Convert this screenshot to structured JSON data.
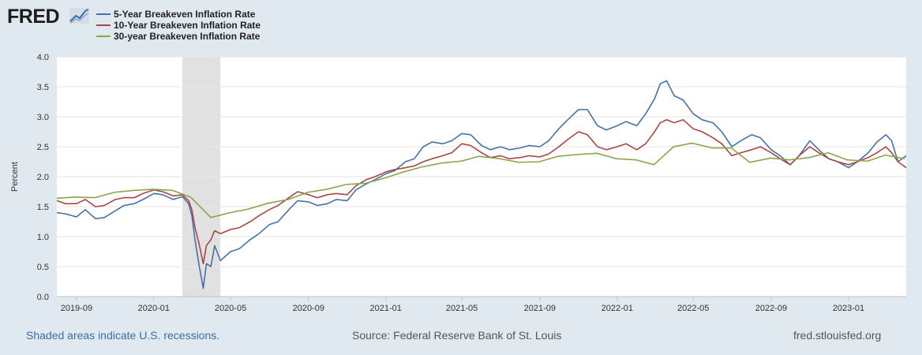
{
  "logo": {
    "text": "FRED"
  },
  "footer": {
    "recession_note": "Shaded areas indicate U.S. recessions.",
    "source": "Source: Federal Reserve Bank of St. Louis",
    "site": "fred.stlouisfed.org"
  },
  "chart_data": {
    "type": "line",
    "ylabel": "Percent",
    "ylim": [
      0.0,
      4.0
    ],
    "xlim": [
      "2019-08-01",
      "2023-04-02"
    ],
    "yticks": [
      "0.0",
      "0.5",
      "1.0",
      "1.5",
      "2.0",
      "2.5",
      "3.0",
      "3.5",
      "4.0"
    ],
    "xticks": [
      "2019-09",
      "2020-01",
      "2020-05",
      "2020-09",
      "2021-01",
      "2021-05",
      "2021-09",
      "2022-01",
      "2022-05",
      "2022-09",
      "2023-01"
    ],
    "grid": true,
    "legend": "top-left",
    "recessions": [
      {
        "start": "2020-02-15",
        "end": "2020-04-15"
      }
    ],
    "colors": {
      "five_year": "#4572a7",
      "ten_year": "#aa4643",
      "thirty_year": "#89a54e",
      "recession": "#e1e1e1"
    },
    "series": [
      {
        "name": "5-Year Breakeven Inflation Rate",
        "color": "#4572a7",
        "points": [
          [
            "2019-08-01",
            1.4
          ],
          [
            "2019-08-15",
            1.38
          ],
          [
            "2019-09-01",
            1.33
          ],
          [
            "2019-09-15",
            1.45
          ],
          [
            "2019-10-01",
            1.3
          ],
          [
            "2019-10-15",
            1.32
          ],
          [
            "2019-11-01",
            1.43
          ],
          [
            "2019-11-15",
            1.52
          ],
          [
            "2019-12-01",
            1.55
          ],
          [
            "2019-12-15",
            1.62
          ],
          [
            "2020-01-01",
            1.72
          ],
          [
            "2020-01-15",
            1.7
          ],
          [
            "2020-02-01",
            1.62
          ],
          [
            "2020-02-15",
            1.67
          ],
          [
            "2020-02-25",
            1.55
          ],
          [
            "2020-03-01",
            1.35
          ],
          [
            "2020-03-06",
            0.95
          ],
          [
            "2020-03-12",
            0.55
          ],
          [
            "2020-03-19",
            0.14
          ],
          [
            "2020-03-24",
            0.55
          ],
          [
            "2020-03-31",
            0.5
          ],
          [
            "2020-04-06",
            0.85
          ],
          [
            "2020-04-15",
            0.6
          ],
          [
            "2020-05-01",
            0.75
          ],
          [
            "2020-05-15",
            0.8
          ],
          [
            "2020-06-01",
            0.95
          ],
          [
            "2020-06-15",
            1.05
          ],
          [
            "2020-07-01",
            1.2
          ],
          [
            "2020-07-15",
            1.25
          ],
          [
            "2020-08-01",
            1.45
          ],
          [
            "2020-08-15",
            1.6
          ],
          [
            "2020-09-01",
            1.58
          ],
          [
            "2020-09-15",
            1.52
          ],
          [
            "2020-10-01",
            1.55
          ],
          [
            "2020-10-15",
            1.62
          ],
          [
            "2020-11-01",
            1.6
          ],
          [
            "2020-11-15",
            1.78
          ],
          [
            "2020-12-01",
            1.88
          ],
          [
            "2020-12-15",
            1.95
          ],
          [
            "2021-01-01",
            2.05
          ],
          [
            "2021-01-15",
            2.1
          ],
          [
            "2021-02-01",
            2.25
          ],
          [
            "2021-02-15",
            2.3
          ],
          [
            "2021-03-01",
            2.5
          ],
          [
            "2021-03-15",
            2.58
          ],
          [
            "2021-04-01",
            2.55
          ],
          [
            "2021-04-15",
            2.6
          ],
          [
            "2021-05-01",
            2.72
          ],
          [
            "2021-05-15",
            2.7
          ],
          [
            "2021-06-01",
            2.52
          ],
          [
            "2021-06-15",
            2.45
          ],
          [
            "2021-07-01",
            2.5
          ],
          [
            "2021-07-15",
            2.45
          ],
          [
            "2021-08-01",
            2.48
          ],
          [
            "2021-08-15",
            2.52
          ],
          [
            "2021-09-01",
            2.5
          ],
          [
            "2021-09-15",
            2.6
          ],
          [
            "2021-10-01",
            2.8
          ],
          [
            "2021-10-15",
            2.95
          ],
          [
            "2021-11-01",
            3.12
          ],
          [
            "2021-11-15",
            3.12
          ],
          [
            "2021-12-01",
            2.85
          ],
          [
            "2021-12-15",
            2.78
          ],
          [
            "2022-01-01",
            2.85
          ],
          [
            "2022-01-15",
            2.92
          ],
          [
            "2022-02-01",
            2.85
          ],
          [
            "2022-02-15",
            3.05
          ],
          [
            "2022-03-01",
            3.3
          ],
          [
            "2022-03-10",
            3.55
          ],
          [
            "2022-03-20",
            3.6
          ],
          [
            "2022-04-01",
            3.35
          ],
          [
            "2022-04-15",
            3.28
          ],
          [
            "2022-05-01",
            3.05
          ],
          [
            "2022-05-15",
            2.95
          ],
          [
            "2022-06-01",
            2.9
          ],
          [
            "2022-06-15",
            2.75
          ],
          [
            "2022-07-01",
            2.5
          ],
          [
            "2022-07-15",
            2.6
          ],
          [
            "2022-08-01",
            2.7
          ],
          [
            "2022-08-15",
            2.65
          ],
          [
            "2022-09-01",
            2.45
          ],
          [
            "2022-09-15",
            2.35
          ],
          [
            "2022-10-01",
            2.2
          ],
          [
            "2022-10-15",
            2.35
          ],
          [
            "2022-11-01",
            2.6
          ],
          [
            "2022-11-15",
            2.45
          ],
          [
            "2022-12-01",
            2.3
          ],
          [
            "2022-12-15",
            2.25
          ],
          [
            "2023-01-01",
            2.15
          ],
          [
            "2023-01-15",
            2.25
          ],
          [
            "2023-02-01",
            2.4
          ],
          [
            "2023-02-15",
            2.58
          ],
          [
            "2023-03-01",
            2.7
          ],
          [
            "2023-03-10",
            2.6
          ],
          [
            "2023-03-20",
            2.25
          ],
          [
            "2023-04-02",
            2.35
          ]
        ]
      },
      {
        "name": "10-Year Breakeven Inflation Rate",
        "color": "#aa4643",
        "points": [
          [
            "2019-08-01",
            1.6
          ],
          [
            "2019-08-15",
            1.55
          ],
          [
            "2019-09-01",
            1.55
          ],
          [
            "2019-09-15",
            1.62
          ],
          [
            "2019-10-01",
            1.5
          ],
          [
            "2019-10-15",
            1.52
          ],
          [
            "2019-11-01",
            1.62
          ],
          [
            "2019-11-15",
            1.65
          ],
          [
            "2019-12-01",
            1.65
          ],
          [
            "2019-12-15",
            1.72
          ],
          [
            "2020-01-01",
            1.78
          ],
          [
            "2020-01-15",
            1.75
          ],
          [
            "2020-02-01",
            1.68
          ],
          [
            "2020-02-15",
            1.7
          ],
          [
            "2020-02-25",
            1.6
          ],
          [
            "2020-03-01",
            1.45
          ],
          [
            "2020-03-06",
            1.15
          ],
          [
            "2020-03-12",
            0.9
          ],
          [
            "2020-03-19",
            0.55
          ],
          [
            "2020-03-24",
            0.85
          ],
          [
            "2020-03-31",
            0.95
          ],
          [
            "2020-04-06",
            1.1
          ],
          [
            "2020-04-15",
            1.05
          ],
          [
            "2020-05-01",
            1.12
          ],
          [
            "2020-05-15",
            1.15
          ],
          [
            "2020-06-01",
            1.25
          ],
          [
            "2020-06-15",
            1.35
          ],
          [
            "2020-07-01",
            1.45
          ],
          [
            "2020-07-15",
            1.52
          ],
          [
            "2020-08-01",
            1.65
          ],
          [
            "2020-08-15",
            1.75
          ],
          [
            "2020-09-01",
            1.7
          ],
          [
            "2020-09-15",
            1.65
          ],
          [
            "2020-10-01",
            1.7
          ],
          [
            "2020-10-15",
            1.72
          ],
          [
            "2020-11-01",
            1.7
          ],
          [
            "2020-11-15",
            1.85
          ],
          [
            "2020-12-01",
            1.95
          ],
          [
            "2020-12-15",
            2.0
          ],
          [
            "2021-01-01",
            2.08
          ],
          [
            "2021-01-15",
            2.12
          ],
          [
            "2021-02-01",
            2.15
          ],
          [
            "2021-02-15",
            2.18
          ],
          [
            "2021-03-01",
            2.25
          ],
          [
            "2021-03-15",
            2.3
          ],
          [
            "2021-04-01",
            2.35
          ],
          [
            "2021-04-15",
            2.4
          ],
          [
            "2021-05-01",
            2.55
          ],
          [
            "2021-05-15",
            2.52
          ],
          [
            "2021-06-01",
            2.4
          ],
          [
            "2021-06-15",
            2.32
          ],
          [
            "2021-07-01",
            2.35
          ],
          [
            "2021-07-15",
            2.3
          ],
          [
            "2021-08-01",
            2.32
          ],
          [
            "2021-08-15",
            2.35
          ],
          [
            "2021-09-01",
            2.33
          ],
          [
            "2021-09-15",
            2.38
          ],
          [
            "2021-10-01",
            2.5
          ],
          [
            "2021-10-15",
            2.62
          ],
          [
            "2021-11-01",
            2.75
          ],
          [
            "2021-11-15",
            2.7
          ],
          [
            "2021-12-01",
            2.5
          ],
          [
            "2021-12-15",
            2.45
          ],
          [
            "2022-01-01",
            2.5
          ],
          [
            "2022-01-15",
            2.55
          ],
          [
            "2022-02-01",
            2.45
          ],
          [
            "2022-02-15",
            2.55
          ],
          [
            "2022-03-01",
            2.75
          ],
          [
            "2022-03-10",
            2.9
          ],
          [
            "2022-03-20",
            2.95
          ],
          [
            "2022-04-01",
            2.9
          ],
          [
            "2022-04-15",
            2.95
          ],
          [
            "2022-05-01",
            2.8
          ],
          [
            "2022-05-15",
            2.75
          ],
          [
            "2022-06-01",
            2.65
          ],
          [
            "2022-06-15",
            2.55
          ],
          [
            "2022-07-01",
            2.35
          ],
          [
            "2022-07-15",
            2.4
          ],
          [
            "2022-08-01",
            2.45
          ],
          [
            "2022-08-15",
            2.5
          ],
          [
            "2022-09-01",
            2.4
          ],
          [
            "2022-09-15",
            2.3
          ],
          [
            "2022-10-01",
            2.2
          ],
          [
            "2022-10-15",
            2.35
          ],
          [
            "2022-11-01",
            2.5
          ],
          [
            "2022-11-15",
            2.4
          ],
          [
            "2022-12-01",
            2.3
          ],
          [
            "2022-12-15",
            2.25
          ],
          [
            "2023-01-01",
            2.2
          ],
          [
            "2023-01-15",
            2.25
          ],
          [
            "2023-02-01",
            2.32
          ],
          [
            "2023-02-15",
            2.4
          ],
          [
            "2023-03-01",
            2.5
          ],
          [
            "2023-03-10",
            2.4
          ],
          [
            "2023-03-20",
            2.25
          ],
          [
            "2023-04-02",
            2.15
          ]
        ]
      },
      {
        "name": "30-year Breakeven Inflation Rate",
        "color": "#89a54e",
        "points": [
          [
            "2019-08-01",
            1.64
          ],
          [
            "2019-08-31",
            1.66
          ],
          [
            "2019-09-30",
            1.65
          ],
          [
            "2019-10-31",
            1.74
          ],
          [
            "2019-11-29",
            1.77
          ],
          [
            "2019-12-31",
            1.79
          ],
          [
            "2020-01-31",
            1.77
          ],
          [
            "2020-02-28",
            1.66
          ],
          [
            "2020-03-31",
            1.32
          ],
          [
            "2020-04-30",
            1.4
          ],
          [
            "2020-05-29",
            1.46
          ],
          [
            "2020-06-30",
            1.56
          ],
          [
            "2020-07-31",
            1.62
          ],
          [
            "2020-08-31",
            1.74
          ],
          [
            "2020-09-30",
            1.79
          ],
          [
            "2020-10-30",
            1.87
          ],
          [
            "2020-11-30",
            1.89
          ],
          [
            "2020-12-31",
            1.98
          ],
          [
            "2021-01-29",
            2.08
          ],
          [
            "2021-02-26",
            2.16
          ],
          [
            "2021-03-31",
            2.23
          ],
          [
            "2021-04-30",
            2.26
          ],
          [
            "2021-05-28",
            2.34
          ],
          [
            "2021-06-30",
            2.3
          ],
          [
            "2021-07-30",
            2.24
          ],
          [
            "2021-08-31",
            2.25
          ],
          [
            "2021-09-30",
            2.34
          ],
          [
            "2021-10-29",
            2.37
          ],
          [
            "2021-11-30",
            2.39
          ],
          [
            "2021-12-31",
            2.3
          ],
          [
            "2022-01-31",
            2.28
          ],
          [
            "2022-02-28",
            2.2
          ],
          [
            "2022-03-31",
            2.5
          ],
          [
            "2022-04-29",
            2.56
          ],
          [
            "2022-05-31",
            2.48
          ],
          [
            "2022-06-30",
            2.48
          ],
          [
            "2022-07-29",
            2.24
          ],
          [
            "2022-08-31",
            2.31
          ],
          [
            "2022-09-30",
            2.28
          ],
          [
            "2022-10-31",
            2.32
          ],
          [
            "2022-11-30",
            2.4
          ],
          [
            "2022-12-30",
            2.28
          ],
          [
            "2023-01-31",
            2.26
          ],
          [
            "2023-02-28",
            2.36
          ],
          [
            "2023-03-31",
            2.3
          ]
        ]
      }
    ]
  }
}
